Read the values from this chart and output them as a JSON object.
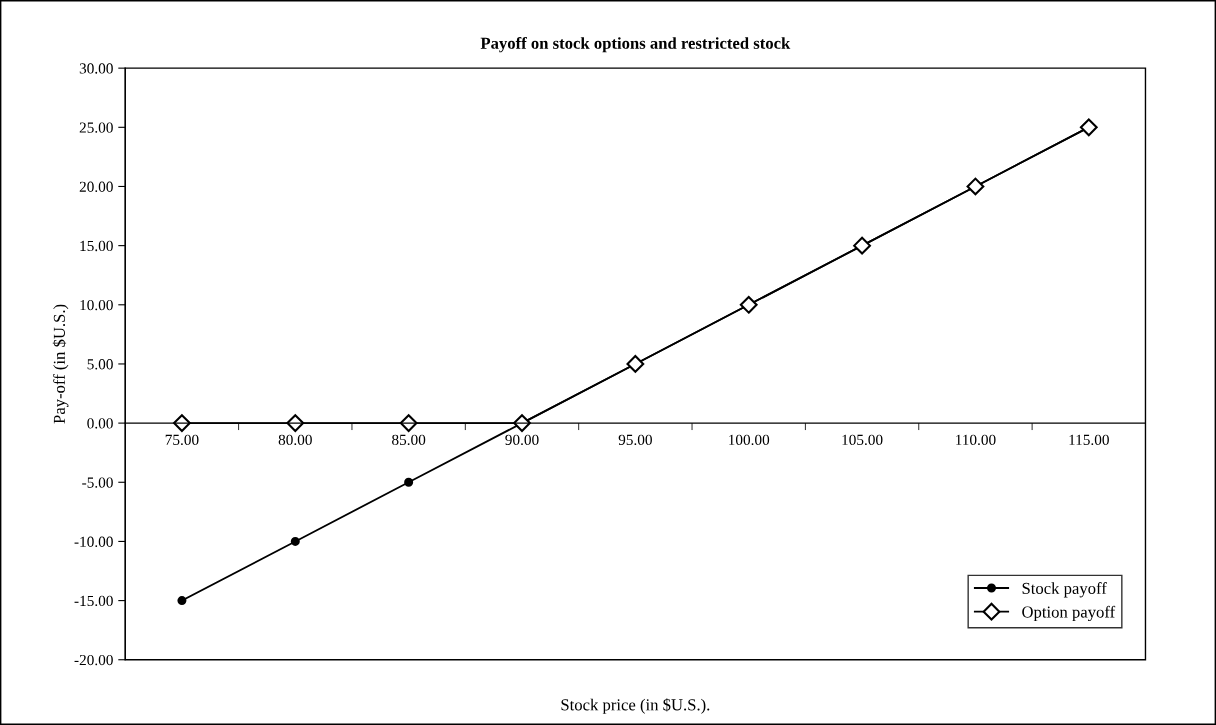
{
  "chart_data": {
    "type": "line",
    "title": "Payoff on stock options and restricted stock",
    "xlabel": "Stock price (in $U.S.).",
    "ylabel": "Pay-off (in $U.S.)",
    "categories": [
      "75.00",
      "80.00",
      "85.00",
      "90.00",
      "95.00",
      "100.00",
      "105.00",
      "110.00",
      "115.00"
    ],
    "series": [
      {
        "name": "Stock payoff",
        "color": "#000000",
        "marker": "circle",
        "values": [
          -15,
          -10,
          -5,
          0,
          5,
          10,
          15,
          20,
          25
        ]
      },
      {
        "name": "Option payoff",
        "color": "#000000",
        "marker": "diamond",
        "values": [
          0,
          0,
          0,
          0,
          5,
          10,
          15,
          20,
          25
        ]
      }
    ],
    "ylim": [
      -20,
      30
    ],
    "yticks": [
      {
        "value": -20,
        "label": "-20.00"
      },
      {
        "value": -15,
        "label": "-15.00"
      },
      {
        "value": -10,
        "label": "-10.00"
      },
      {
        "value": -5,
        "label": "-5.00"
      },
      {
        "value": 0,
        "label": "0.00"
      },
      {
        "value": 5,
        "label": "5.00"
      },
      {
        "value": 10,
        "label": "10.00"
      },
      {
        "value": 15,
        "label": "15.00"
      },
      {
        "value": 20,
        "label": "20.00"
      },
      {
        "value": 25,
        "label": "25.00"
      },
      {
        "value": 30,
        "label": "30.00"
      }
    ],
    "grid": false,
    "legend": "bottom right",
    "line_style": "solid"
  }
}
